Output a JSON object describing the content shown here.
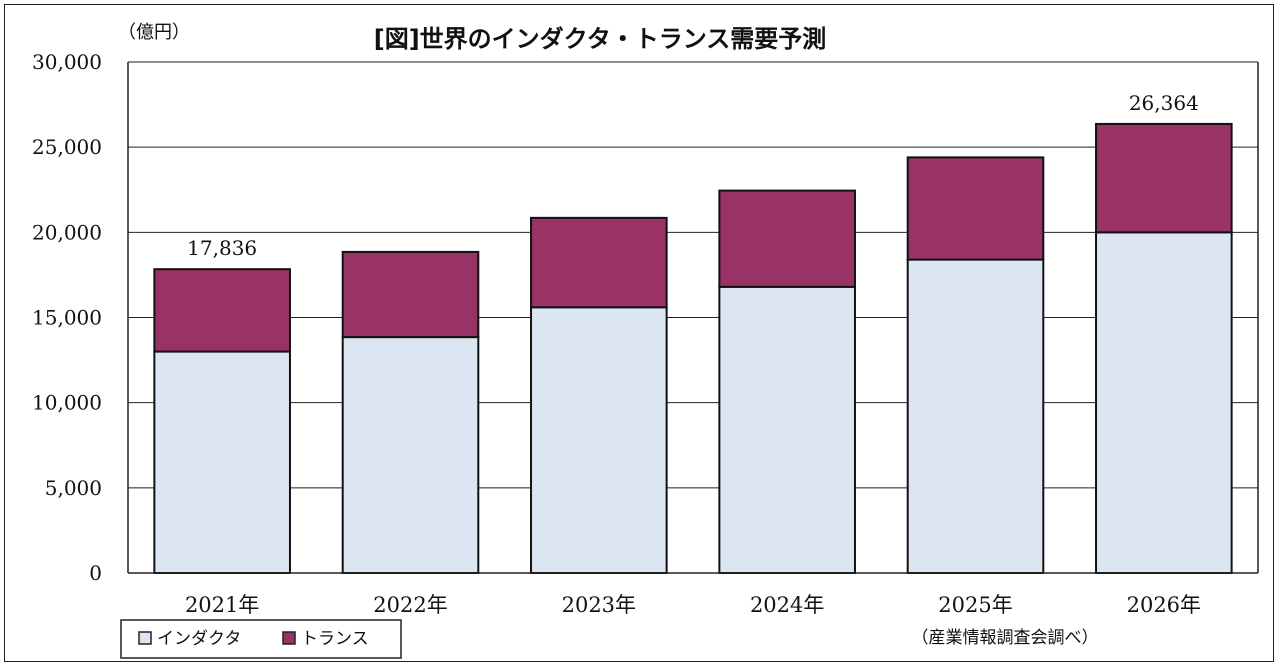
{
  "chart_data": {
    "type": "bar",
    "stacked": true,
    "title": "[図]世界のインダクタ・トランス需要予測",
    "unit_label": "（億円）",
    "source_note": "（産業情報調査会調べ）",
    "categories": [
      "2021年",
      "2022年",
      "2023年",
      "2024年",
      "2025年",
      "2026年"
    ],
    "series": [
      {
        "name": "インダクタ",
        "color": "#dce6f2",
        "values": [
          13000,
          13850,
          15600,
          16800,
          18400,
          20000
        ]
      },
      {
        "name": "トランス",
        "color": "#993366",
        "values": [
          4836,
          5000,
          5250,
          5650,
          6000,
          6364
        ]
      }
    ],
    "totals_labels": [
      {
        "category_index": 0,
        "text": "17,836"
      },
      {
        "category_index": 5,
        "text": "26,364"
      }
    ],
    "y_ticks": [
      "0",
      "5,000",
      "10,000",
      "15,000",
      "20,000",
      "25,000",
      "30,000"
    ],
    "ylim": [
      0,
      30000
    ],
    "grid": true,
    "legend_position": "bottom-left"
  }
}
